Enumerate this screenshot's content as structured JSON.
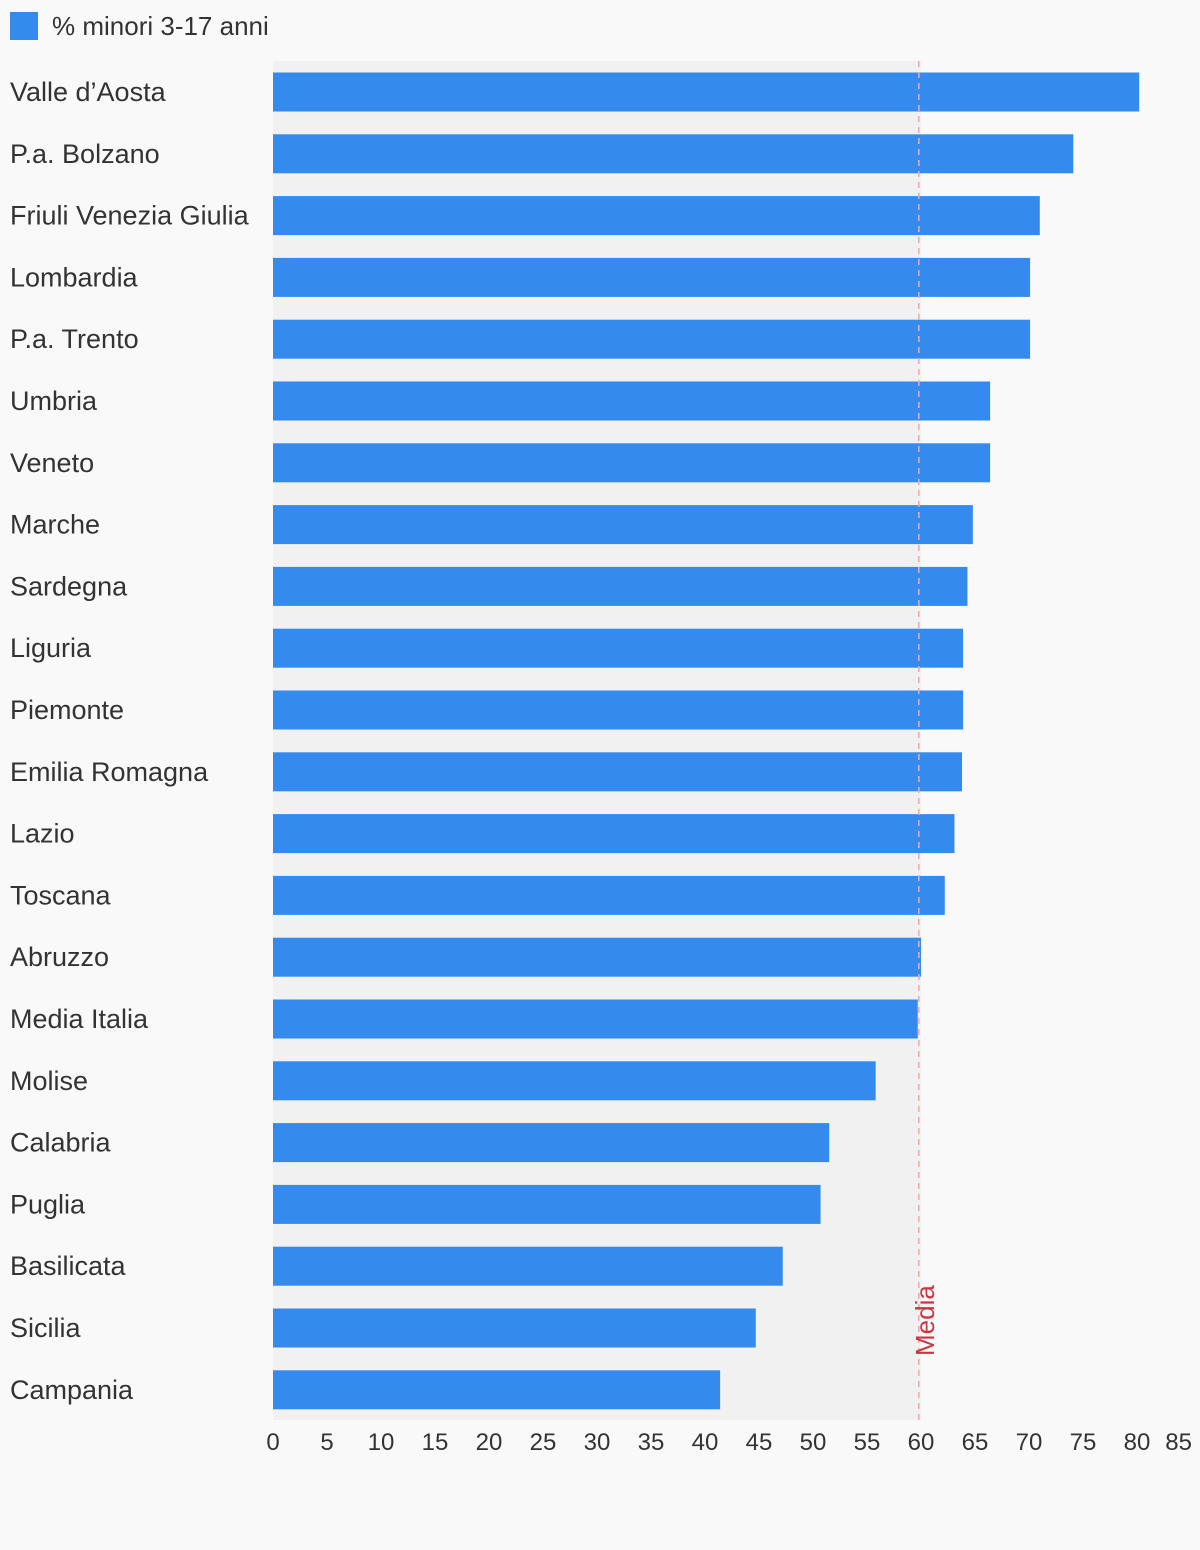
{
  "colors": {
    "background": "#f9f9f9",
    "plot_band": "#f1f1f1",
    "bar": "#348bed",
    "reference_line": "#f1a8ae",
    "reference_label": "#d0343f",
    "text": "#333333"
  },
  "legend": {
    "label": "% minori 3-17 anni",
    "placement": "top-left"
  },
  "chart_data": {
    "type": "bar",
    "orientation": "horizontal",
    "categories": [
      "Valle d’Aosta",
      "P.a. Bolzano",
      "Friuli Venezia Giulia",
      "Lombardia",
      "P.a. Trento",
      "Umbria",
      "Veneto",
      "Marche",
      "Sardegna",
      "Liguria",
      "Piemonte",
      "Emilia Romagna",
      "Lazio",
      "Toscana",
      "Abruzzo",
      "Media Italia",
      "Molise",
      "Calabria",
      "Puglia",
      "Basilicata",
      "Sicilia",
      "Campania"
    ],
    "series": [
      {
        "name": "% minori 3-17 anni",
        "values": [
          80.2,
          74.1,
          71.0,
          70.1,
          70.1,
          66.4,
          66.4,
          64.8,
          64.3,
          63.9,
          63.9,
          63.8,
          63.1,
          62.2,
          60.0,
          59.7,
          55.8,
          51.5,
          50.7,
          47.2,
          44.7,
          41.4
        ]
      }
    ],
    "xlim": [
      0,
      85
    ],
    "x_ticks": [
      "0",
      "5",
      "10",
      "15",
      "20",
      "25",
      "30",
      "35",
      "40",
      "45",
      "50",
      "55",
      "60",
      "65",
      "70",
      "75",
      "80",
      "85"
    ],
    "reference_line": {
      "value": 59.8,
      "label": "Media",
      "style": "dashed"
    },
    "title": "",
    "xlabel": "",
    "ylabel": "",
    "grid": false
  }
}
